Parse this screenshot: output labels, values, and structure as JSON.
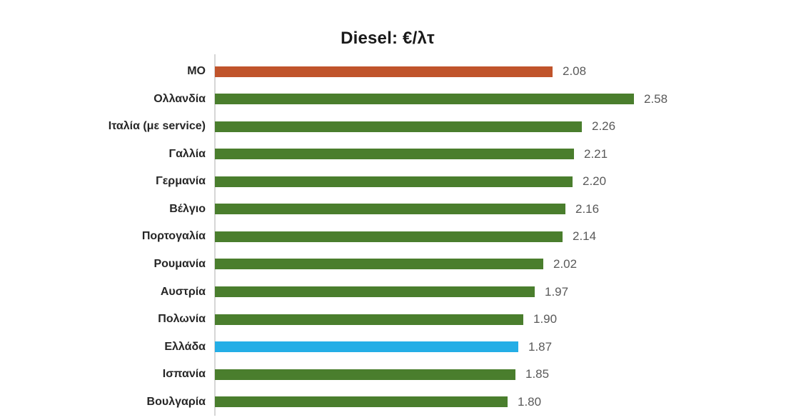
{
  "chart_data": {
    "type": "bar",
    "orientation": "horizontal",
    "title": "Diesel: €/λτ",
    "categories": [
      "ΜΟ",
      "Ολλανδία",
      "Ιταλία (με service)",
      "Γαλλία",
      "Γερμανία",
      "Βέλγιο",
      "Πορτογαλία",
      "Ρουμανία",
      "Αυστρία",
      "Πολωνία",
      "Ελλάδα",
      "Ισπανία",
      "Βουλγαρία"
    ],
    "values": [
      2.08,
      2.58,
      2.26,
      2.21,
      2.2,
      2.16,
      2.14,
      2.02,
      1.97,
      1.9,
      1.87,
      1.85,
      1.8
    ],
    "value_labels": [
      "2.08",
      "2.58",
      "2.26",
      "2.21",
      "2.20",
      "2.16",
      "2.14",
      "2.02",
      "1.97",
      "1.90",
      "1.87",
      "1.85",
      "1.80"
    ],
    "bar_colors": [
      "#C0542B",
      "#4A7E2D",
      "#4A7E2D",
      "#4A7E2D",
      "#4A7E2D",
      "#4A7E2D",
      "#4A7E2D",
      "#4A7E2D",
      "#4A7E2D",
      "#4A7E2D",
      "#24AEE6",
      "#4A7E2D",
      "#4A7E2D"
    ],
    "color_legend": {
      "average_bar": "#C0542B",
      "country_bar": "#4A7E2D",
      "greece_bar": "#24AEE6"
    },
    "value_label_color": "#595959",
    "category_label_color": "#262626",
    "axis_line_color": "#D6D6D6",
    "grid": false,
    "legend": false,
    "x_axis_ticks_visible": false
  }
}
